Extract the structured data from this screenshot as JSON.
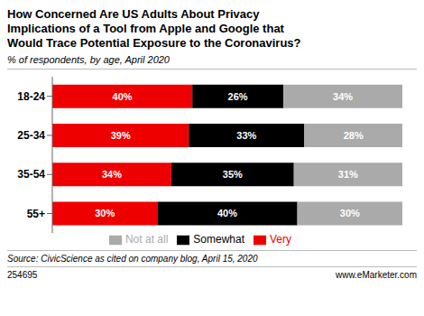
{
  "chart_data": {
    "type": "bar",
    "orientation": "horizontal",
    "stacked": true,
    "title": "How Concerned Are US Adults About Privacy\nImplications of a Tool from Apple and Google that\nWould Trace Potential Exposure to the Coronavirus?",
    "subtitle": "% of respondents, by age, April 2020",
    "categories": [
      "18-24",
      "25-34",
      "35-54",
      "55+"
    ],
    "series": [
      {
        "name": "Very",
        "color": "#ee0000",
        "values": [
          40,
          39,
          34,
          30
        ],
        "value_labels": [
          "40%",
          "39%",
          "34%",
          "30%"
        ]
      },
      {
        "name": "Somewhat",
        "color": "#000000",
        "values": [
          26,
          33,
          35,
          40
        ],
        "value_labels": [
          "26%",
          "33%",
          "35%",
          "40%"
        ]
      },
      {
        "name": "Not at all",
        "color": "#aaaaaa",
        "values": [
          34,
          28,
          31,
          30
        ],
        "value_labels": [
          "34%",
          "28%",
          "31%",
          "30%"
        ]
      }
    ],
    "xlim": [
      0,
      100
    ],
    "data_labels": true,
    "tick_labels": "y",
    "grid": false,
    "legend": "bottom",
    "annotations": [
      "Source: CivicScience as cited on company blog, April 15, 2020",
      "254695",
      "www.eMarketer.com"
    ]
  }
}
